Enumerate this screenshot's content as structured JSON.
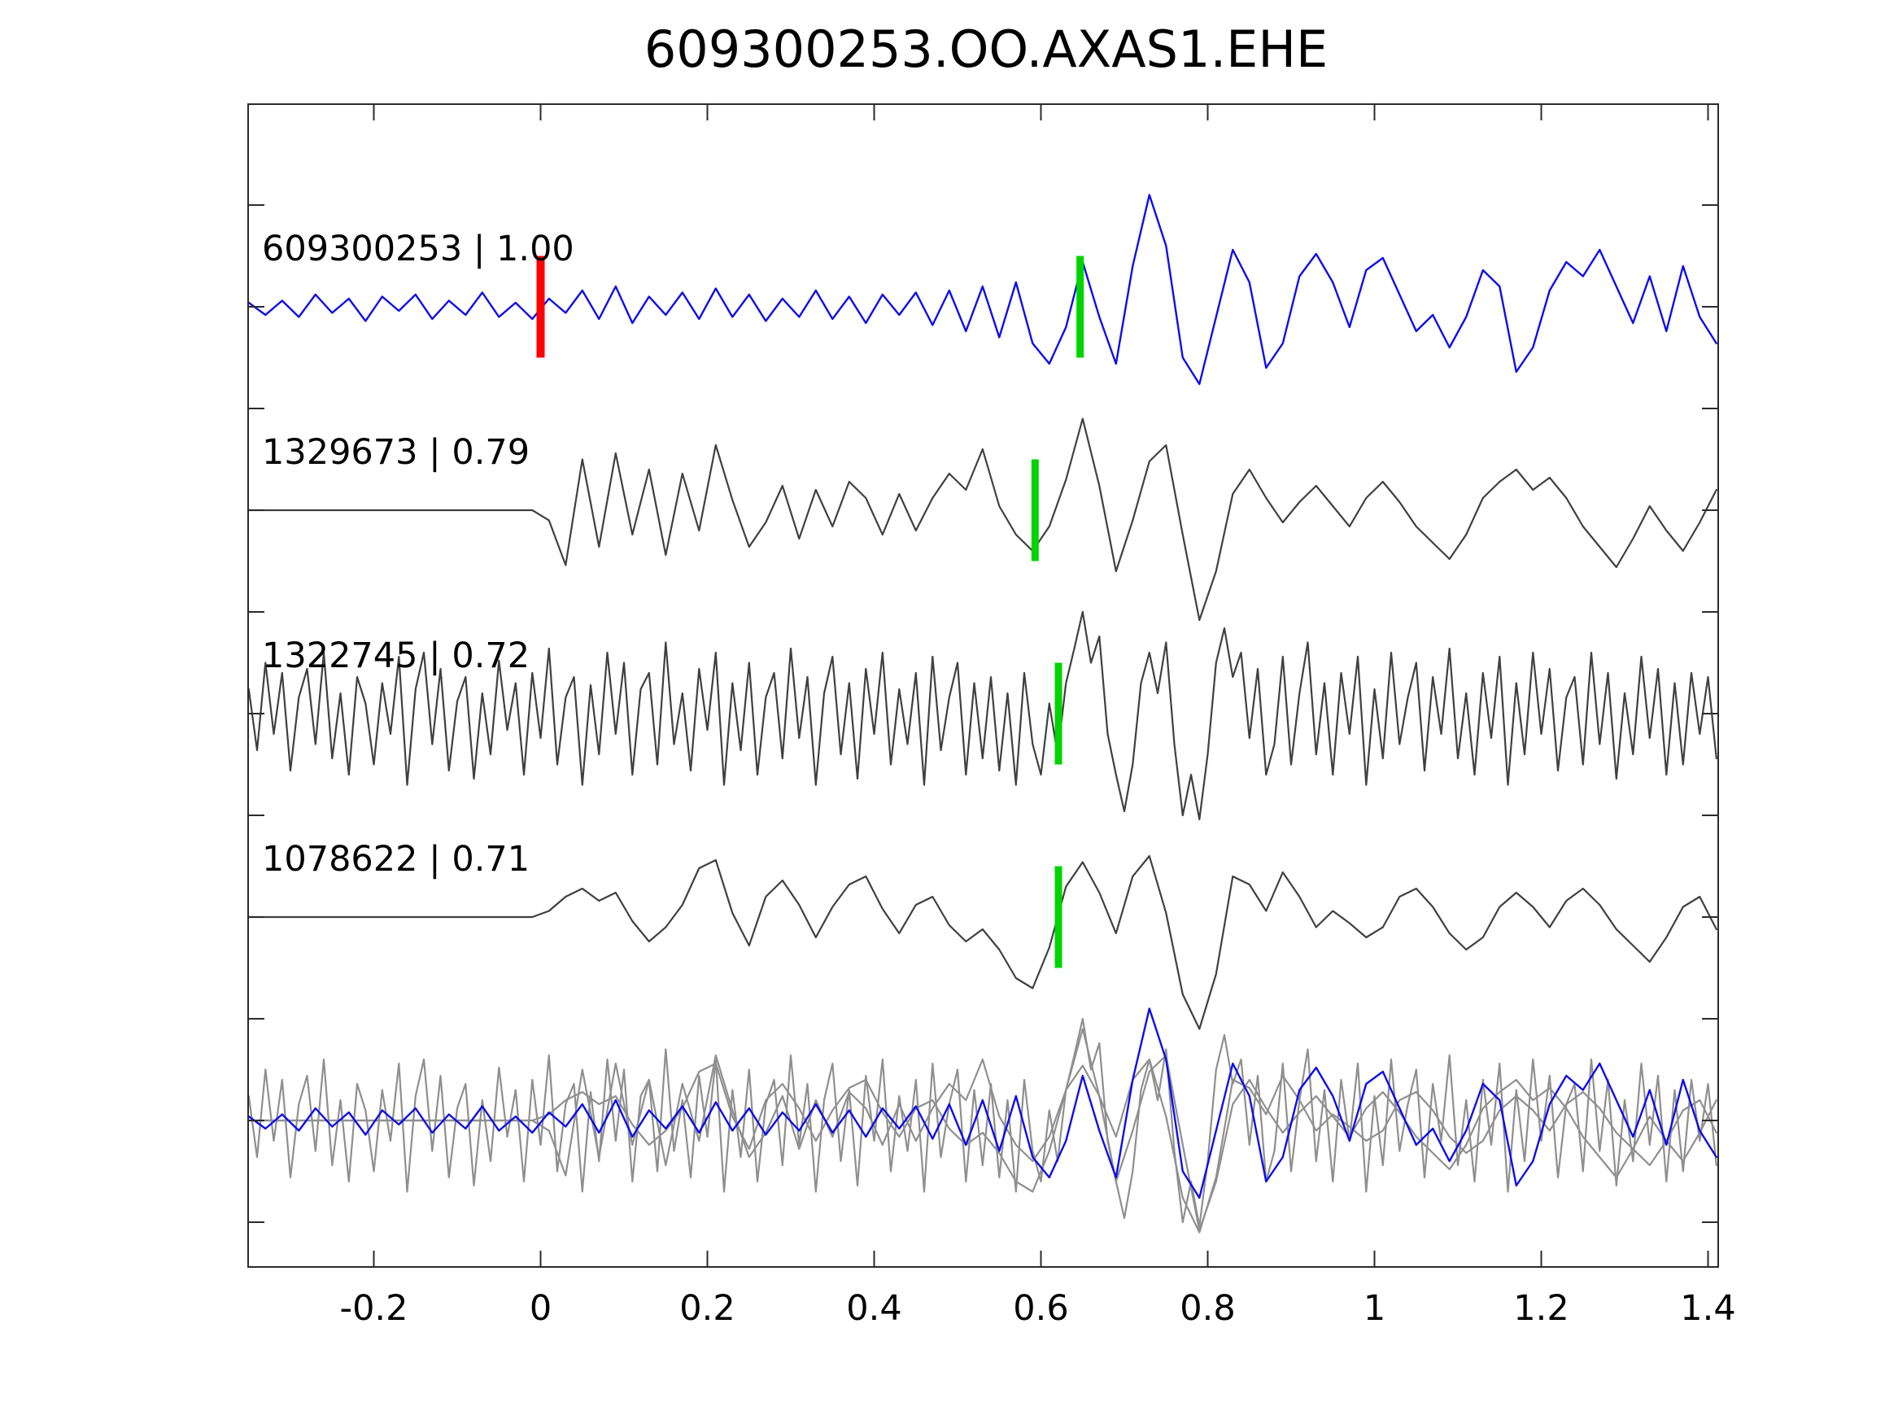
{
  "chart_data": {
    "type": "line",
    "title": "609300253.OO.AXAS1.EHE",
    "description": "Seismic waveform template-matching panel: reference trace (blue) with red origin marker, three matched event traces (dark gray) with green pick markers and correlation coefficients, and an overlay row of all traces superimposed.",
    "x_axis": {
      "min": -0.35,
      "max": 1.41,
      "tick_values": [
        -0.2,
        0,
        0.2,
        0.4,
        0.6,
        0.8,
        1,
        1.2,
        1.4
      ],
      "tick_labels": [
        "-0.2",
        "0",
        "0.2",
        "0.4",
        "0.6",
        "0.8",
        "1",
        "1.2",
        "1.4"
      ]
    },
    "y_axis": {
      "row_spacing_units": 1,
      "tick_step_units": 0.5,
      "labels_shown": false
    },
    "colors": {
      "trace_blue": "#0d0dee",
      "trace_dark": "#404040",
      "overlay_gray": "#8f8f8f",
      "pick_green": "#00d400",
      "onset_red": "#ff0000",
      "axis": "#2b2b2b",
      "text": "#000000"
    },
    "marker_half_height_units": 0.25,
    "traces": [
      {
        "id": "609300253",
        "label": "609300253 | 1.00",
        "correlation": "1.00",
        "row": 0,
        "color": "trace_blue",
        "markers": [
          {
            "x": 0.0,
            "color": "onset_red",
            "width": 10
          },
          {
            "x": 0.647,
            "color": "pick_green",
            "width": 9
          }
        ],
        "x0": -0.35,
        "dx": 0.02,
        "y": [
          0.02,
          -0.04,
          0.03,
          -0.05,
          0.06,
          -0.03,
          0.04,
          -0.07,
          0.05,
          -0.02,
          0.06,
          -0.06,
          0.03,
          -0.04,
          0.07,
          -0.05,
          0.02,
          -0.06,
          0.04,
          -0.03,
          0.08,
          -0.06,
          0.1,
          -0.08,
          0.05,
          -0.04,
          0.07,
          -0.06,
          0.09,
          -0.05,
          0.06,
          -0.07,
          0.04,
          -0.05,
          0.08,
          -0.06,
          0.05,
          -0.08,
          0.06,
          -0.04,
          0.07,
          -0.09,
          0.08,
          -0.12,
          0.1,
          -0.15,
          0.12,
          -0.18,
          -0.28,
          -0.1,
          0.22,
          -0.05,
          -0.28,
          0.2,
          0.55,
          0.3,
          -0.25,
          -0.38,
          -0.05,
          0.28,
          0.12,
          -0.3,
          -0.18,
          0.15,
          0.26,
          0.12,
          -0.1,
          0.18,
          0.24,
          0.06,
          -0.12,
          -0.04,
          -0.2,
          -0.05,
          0.18,
          0.1,
          -0.32,
          -0.2,
          0.08,
          0.22,
          0.15,
          0.28,
          0.1,
          -0.08,
          0.15,
          -0.12,
          0.2,
          -0.05,
          -0.18
        ]
      },
      {
        "id": "1329673",
        "label": "1329673 | 0.79",
        "correlation": "0.79",
        "row": 1,
        "color": "trace_dark",
        "markers": [
          {
            "x": 0.593,
            "color": "pick_green",
            "width": 9
          }
        ],
        "x0": -0.35,
        "dx": 0.02,
        "y": [
          0,
          0,
          0,
          0,
          0,
          0,
          0,
          0,
          0,
          0,
          0,
          0,
          0,
          0,
          0,
          0,
          0,
          0,
          -0.05,
          -0.27,
          0.25,
          -0.18,
          0.28,
          -0.12,
          0.2,
          -0.22,
          0.18,
          -0.1,
          0.32,
          0.05,
          -0.18,
          -0.06,
          0.12,
          -0.14,
          0.1,
          -0.08,
          0.14,
          0.06,
          -0.12,
          0.08,
          -0.1,
          0.06,
          0.18,
          0.1,
          0.3,
          0.02,
          -0.12,
          -0.2,
          -0.08,
          0.15,
          0.45,
          0.12,
          -0.3,
          -0.05,
          0.24,
          0.32,
          -0.12,
          -0.54,
          -0.3,
          0.08,
          0.2,
          0.06,
          -0.06,
          0.04,
          0.12,
          0.02,
          -0.08,
          0.06,
          0.14,
          0.04,
          -0.08,
          -0.16,
          -0.24,
          -0.12,
          0.06,
          0.14,
          0.2,
          0.1,
          0.16,
          0.06,
          -0.08,
          -0.18,
          -0.28,
          -0.14,
          0.02,
          -0.1,
          -0.2,
          -0.06,
          0.1
        ]
      },
      {
        "id": "1322745",
        "label": "1322745 | 0.72",
        "correlation": "0.72",
        "row": 2,
        "color": "trace_dark",
        "markers": [
          {
            "x": 0.621,
            "color": "pick_green",
            "width": 9
          }
        ],
        "x0": -0.35,
        "dx": 0.01,
        "y": [
          0.12,
          -0.18,
          0.25,
          -0.1,
          0.2,
          -0.28,
          0.08,
          0.22,
          -0.15,
          0.3,
          -0.22,
          0.1,
          -0.3,
          0.18,
          0.05,
          -0.25,
          0.15,
          -0.1,
          0.28,
          -0.35,
          0.12,
          0.3,
          -0.15,
          0.22,
          -0.28,
          0.06,
          0.18,
          -0.32,
          0.1,
          -0.2,
          0.26,
          -0.08,
          0.15,
          -0.3,
          0.2,
          -0.12,
          0.32,
          -0.25,
          0.08,
          0.18,
          -0.35,
          0.14,
          -0.2,
          0.3,
          -0.1,
          0.25,
          -0.3,
          0.12,
          0.2,
          -0.25,
          0.35,
          -0.15,
          0.1,
          -0.28,
          0.22,
          -0.08,
          0.3,
          -0.35,
          0.15,
          -0.18,
          0.25,
          -0.3,
          0.08,
          0.2,
          -0.22,
          0.32,
          -0.12,
          0.18,
          -0.35,
          0.1,
          0.28,
          -0.2,
          0.15,
          -0.32,
          0.22,
          -0.1,
          0.3,
          -0.25,
          0.12,
          -0.15,
          0.2,
          -0.35,
          0.28,
          -0.18,
          0.08,
          0.25,
          -0.3,
          0.15,
          -0.22,
          0.18,
          -0.28,
          0.1,
          -0.35,
          0.2,
          -0.15,
          -0.3,
          0.05,
          -0.2,
          0.15,
          0.32,
          0.5,
          0.25,
          0.38,
          -0.1,
          -0.3,
          -0.48,
          -0.25,
          0.15,
          0.3,
          0.1,
          0.35,
          -0.15,
          -0.5,
          -0.3,
          -0.52,
          -0.2,
          0.25,
          0.42,
          0.18,
          0.3,
          -0.12,
          0.22,
          -0.3,
          -0.15,
          0.28,
          -0.25,
          0.1,
          0.35,
          -0.2,
          0.15,
          -0.3,
          0.2,
          -0.1,
          0.28,
          -0.35,
          0.12,
          -0.22,
          0.3,
          -0.15,
          0.08,
          0.25,
          -0.28,
          0.18,
          -0.1,
          0.32,
          -0.22,
          0.1,
          -0.3,
          0.2,
          -0.12,
          0.28,
          -0.35,
          0.15,
          -0.2,
          0.3,
          -0.1,
          0.22,
          -0.28,
          0.08,
          0.18,
          -0.25,
          0.3,
          -0.15,
          0.2,
          -0.32,
          0.1,
          -0.2,
          0.28,
          -0.12,
          0.22,
          -0.3,
          0.15,
          -0.25,
          0.2,
          -0.1,
          0.18,
          -0.22
        ]
      },
      {
        "id": "1078622",
        "label": "1078622 | 0.71",
        "correlation": "0.71",
        "row": 3,
        "color": "trace_dark",
        "markers": [
          {
            "x": 0.621,
            "color": "pick_green",
            "width": 9
          }
        ],
        "x0": -0.35,
        "dx": 0.02,
        "y": [
          0,
          0,
          0,
          0,
          0,
          0,
          0,
          0,
          0,
          0,
          0,
          0,
          0,
          0,
          0,
          0,
          0,
          0,
          0.03,
          0.1,
          0.14,
          0.08,
          0.12,
          -0.02,
          -0.12,
          -0.05,
          0.06,
          0.24,
          0.28,
          0.02,
          -0.14,
          0.1,
          0.18,
          0.06,
          -0.1,
          0.05,
          0.16,
          0.2,
          0.04,
          -0.08,
          0.06,
          0.1,
          -0.04,
          -0.12,
          -0.06,
          -0.16,
          -0.3,
          -0.35,
          -0.15,
          0.15,
          0.27,
          0.12,
          -0.08,
          0.2,
          0.3,
          0.02,
          -0.38,
          -0.55,
          -0.28,
          0.2,
          0.16,
          0.03,
          0.22,
          0.1,
          -0.05,
          0.03,
          -0.03,
          -0.1,
          -0.05,
          0.1,
          0.14,
          0.05,
          -0.08,
          -0.16,
          -0.1,
          0.05,
          0.12,
          0.05,
          -0.05,
          0.08,
          0.14,
          0.06,
          -0.06,
          -0.14,
          -0.22,
          -0.1,
          0.05,
          0.1,
          -0.06
        ]
      }
    ],
    "overlay_row": {
      "row": 4,
      "includes": [
        {
          "trace_index": 1,
          "color": "overlay_gray"
        },
        {
          "trace_index": 2,
          "color": "overlay_gray"
        },
        {
          "trace_index": 3,
          "color": "overlay_gray"
        },
        {
          "trace_index": 0,
          "color": "trace_blue"
        }
      ]
    }
  }
}
